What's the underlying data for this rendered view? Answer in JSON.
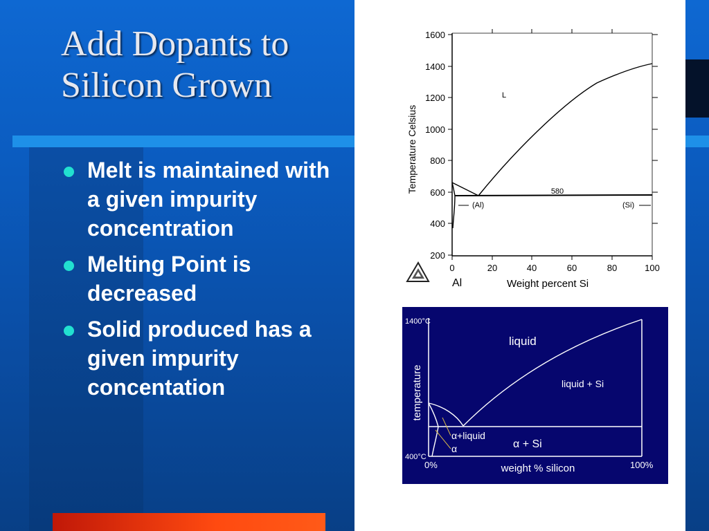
{
  "slide": {
    "title_line1": "Add Dopants to",
    "title_line2": "Silicon Grown",
    "bullets": [
      "Melt is maintained with a given impurity concentration",
      "Melting Point is decreased",
      "Solid produced has a given impurity concentation"
    ]
  },
  "figure_top": {
    "y_axis_label": "Temperature Celsius",
    "x_axis_label": "Weight percent Si",
    "y_ticks": [
      "1600",
      "1400",
      "1200",
      "1000",
      "800",
      "600",
      "400",
      "200"
    ],
    "x_ticks": [
      "0",
      "20",
      "40",
      "60",
      "80",
      "100"
    ],
    "corner_label": "Al",
    "eutectic_label": "580",
    "region_liquid": "L",
    "region_al": "(Al)",
    "region_si": "(Si)"
  },
  "figure_bottom": {
    "y_axis_label": "temperature",
    "x_axis_label": "weight % silicon",
    "y_top_tick": "1400°C",
    "y_bottom_tick": "400°C",
    "x_left_tick": "0%",
    "x_right_tick": "100%",
    "region_liquid": "liquid",
    "region_liquid_si": "liquid + Si",
    "region_alpha_liquid": "α+liquid",
    "region_alpha": "α",
    "region_alpha_si": "α + Si"
  },
  "colors": {
    "background": "#0a5fc4",
    "accent_stripe": "#1e90e8",
    "dark_block": "#0b3d86",
    "bullet_dot": "#22e0d0",
    "orange_bar": "#ff4a10",
    "diagram_navy": "#06066e"
  }
}
